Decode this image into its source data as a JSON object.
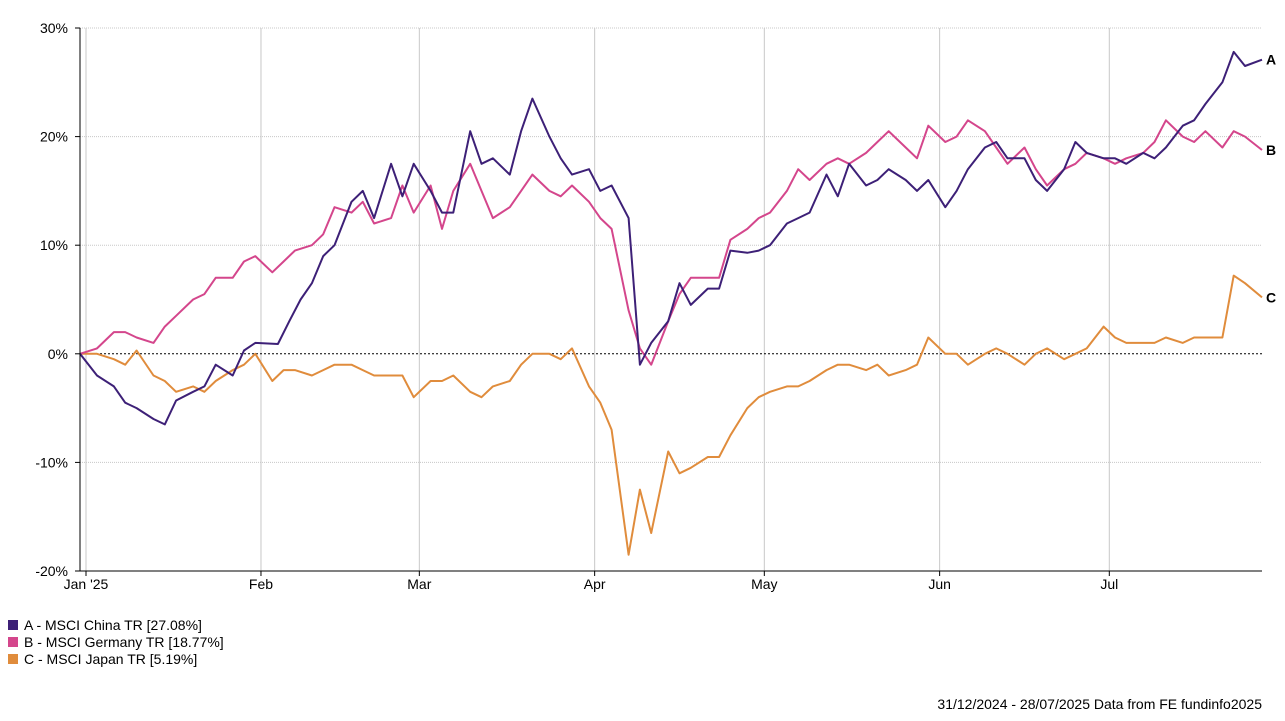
{
  "chart_data": {
    "type": "line",
    "y_unit": "%",
    "ylim": [
      -20,
      30
    ],
    "y_ticks": [
      "30%",
      "20%",
      "10%",
      "0%",
      "-10%",
      "-20%"
    ],
    "y_tick_values": [
      30,
      20,
      10,
      0,
      -10,
      -20
    ],
    "x_ticks": [
      {
        "label": "Jan '25",
        "date": "2025-01-01"
      },
      {
        "label": "Feb",
        "date": "2025-02-01"
      },
      {
        "label": "Mar",
        "date": "2025-03-01"
      },
      {
        "label": "Apr",
        "date": "2025-04-01"
      },
      {
        "label": "May",
        "date": "2025-05-01"
      },
      {
        "label": "Jun",
        "date": "2025-06-01"
      },
      {
        "label": "Jul",
        "date": "2025-07-01"
      }
    ],
    "x_range": [
      "2024-12-31",
      "2025-07-28"
    ],
    "grid": true,
    "zero_line": "dotted",
    "series": [
      {
        "id": "A",
        "name": "MSCI China TR",
        "final": "27.08%",
        "color": "#3d2077",
        "points": [
          [
            "2024-12-31",
            0
          ],
          [
            "2025-01-03",
            -2
          ],
          [
            "2025-01-06",
            -3
          ],
          [
            "2025-01-08",
            -4.5
          ],
          [
            "2025-01-10",
            -5
          ],
          [
            "2025-01-13",
            -6
          ],
          [
            "2025-01-15",
            -6.5
          ],
          [
            "2025-01-17",
            -4.3
          ],
          [
            "2025-01-20",
            -3.5
          ],
          [
            "2025-01-22",
            -3
          ],
          [
            "2025-01-24",
            -1
          ],
          [
            "2025-01-27",
            -2
          ],
          [
            "2025-01-29",
            0.3
          ],
          [
            "2025-01-31",
            1
          ],
          [
            "2025-02-04",
            0.9
          ],
          [
            "2025-02-06",
            3
          ],
          [
            "2025-02-08",
            5
          ],
          [
            "2025-02-10",
            6.5
          ],
          [
            "2025-02-12",
            9
          ],
          [
            "2025-02-14",
            10
          ],
          [
            "2025-02-17",
            14
          ],
          [
            "2025-02-19",
            15
          ],
          [
            "2025-02-21",
            12.5
          ],
          [
            "2025-02-24",
            17.5
          ],
          [
            "2025-02-26",
            14.5
          ],
          [
            "2025-02-28",
            17.5
          ],
          [
            "2025-03-03",
            15
          ],
          [
            "2025-03-05",
            13
          ],
          [
            "2025-03-07",
            13
          ],
          [
            "2025-03-10",
            20.5
          ],
          [
            "2025-03-12",
            17.5
          ],
          [
            "2025-03-14",
            18
          ],
          [
            "2025-03-17",
            16.5
          ],
          [
            "2025-03-19",
            20.5
          ],
          [
            "2025-03-21",
            23.5
          ],
          [
            "2025-03-24",
            20
          ],
          [
            "2025-03-26",
            18
          ],
          [
            "2025-03-28",
            16.5
          ],
          [
            "2025-03-31",
            17
          ],
          [
            "2025-04-02",
            15
          ],
          [
            "2025-04-04",
            15.5
          ],
          [
            "2025-04-07",
            12.5
          ],
          [
            "2025-04-09",
            -1
          ],
          [
            "2025-04-11",
            1
          ],
          [
            "2025-04-14",
            3
          ],
          [
            "2025-04-16",
            6.5
          ],
          [
            "2025-04-18",
            4.5
          ],
          [
            "2025-04-21",
            6
          ],
          [
            "2025-04-23",
            6
          ],
          [
            "2025-04-25",
            9.5
          ],
          [
            "2025-04-28",
            9.3
          ],
          [
            "2025-04-30",
            9.5
          ],
          [
            "2025-05-02",
            10
          ],
          [
            "2025-05-05",
            12
          ],
          [
            "2025-05-07",
            12.5
          ],
          [
            "2025-05-09",
            13
          ],
          [
            "2025-05-12",
            16.5
          ],
          [
            "2025-05-14",
            14.5
          ],
          [
            "2025-05-16",
            17.5
          ],
          [
            "2025-05-19",
            15.5
          ],
          [
            "2025-05-21",
            16
          ],
          [
            "2025-05-23",
            17
          ],
          [
            "2025-05-26",
            16
          ],
          [
            "2025-05-28",
            15
          ],
          [
            "2025-05-30",
            16
          ],
          [
            "2025-06-02",
            13.5
          ],
          [
            "2025-06-04",
            15
          ],
          [
            "2025-06-06",
            17
          ],
          [
            "2025-06-09",
            19
          ],
          [
            "2025-06-11",
            19.5
          ],
          [
            "2025-06-13",
            18
          ],
          [
            "2025-06-16",
            18
          ],
          [
            "2025-06-18",
            16
          ],
          [
            "2025-06-20",
            15
          ],
          [
            "2025-06-23",
            17
          ],
          [
            "2025-06-25",
            19.5
          ],
          [
            "2025-06-27",
            18.5
          ],
          [
            "2025-06-30",
            18
          ],
          [
            "2025-07-02",
            18
          ],
          [
            "2025-07-04",
            17.5
          ],
          [
            "2025-07-07",
            18.5
          ],
          [
            "2025-07-09",
            18
          ],
          [
            "2025-07-11",
            19
          ],
          [
            "2025-07-14",
            21
          ],
          [
            "2025-07-16",
            21.5
          ],
          [
            "2025-07-18",
            23
          ],
          [
            "2025-07-21",
            25
          ],
          [
            "2025-07-23",
            27.8
          ],
          [
            "2025-07-25",
            26.5
          ],
          [
            "2025-07-28",
            27.08
          ]
        ]
      },
      {
        "id": "B",
        "name": "MSCI Germany TR",
        "final": "18.77%",
        "color": "#d4468c",
        "points": [
          [
            "2024-12-31",
            0
          ],
          [
            "2025-01-03",
            0.5
          ],
          [
            "2025-01-06",
            2
          ],
          [
            "2025-01-08",
            2
          ],
          [
            "2025-01-10",
            1.5
          ],
          [
            "2025-01-13",
            1
          ],
          [
            "2025-01-15",
            2.5
          ],
          [
            "2025-01-17",
            3.5
          ],
          [
            "2025-01-20",
            5
          ],
          [
            "2025-01-22",
            5.5
          ],
          [
            "2025-01-24",
            7
          ],
          [
            "2025-01-27",
            7
          ],
          [
            "2025-01-29",
            8.5
          ],
          [
            "2025-01-31",
            9
          ],
          [
            "2025-02-03",
            7.5
          ],
          [
            "2025-02-05",
            8.5
          ],
          [
            "2025-02-07",
            9.5
          ],
          [
            "2025-02-10",
            10
          ],
          [
            "2025-02-12",
            11
          ],
          [
            "2025-02-14",
            13.5
          ],
          [
            "2025-02-17",
            13
          ],
          [
            "2025-02-19",
            14
          ],
          [
            "2025-02-21",
            12
          ],
          [
            "2025-02-24",
            12.5
          ],
          [
            "2025-02-26",
            15.5
          ],
          [
            "2025-02-28",
            13
          ],
          [
            "2025-03-03",
            15.5
          ],
          [
            "2025-03-05",
            11.5
          ],
          [
            "2025-03-07",
            15
          ],
          [
            "2025-03-10",
            17.5
          ],
          [
            "2025-03-12",
            15
          ],
          [
            "2025-03-14",
            12.5
          ],
          [
            "2025-03-17",
            13.5
          ],
          [
            "2025-03-19",
            15
          ],
          [
            "2025-03-21",
            16.5
          ],
          [
            "2025-03-24",
            15
          ],
          [
            "2025-03-26",
            14.5
          ],
          [
            "2025-03-28",
            15.5
          ],
          [
            "2025-03-31",
            14
          ],
          [
            "2025-04-02",
            12.5
          ],
          [
            "2025-04-04",
            11.5
          ],
          [
            "2025-04-07",
            4
          ],
          [
            "2025-04-09",
            0.5
          ],
          [
            "2025-04-11",
            -1
          ],
          [
            "2025-04-14",
            3
          ],
          [
            "2025-04-16",
            5.5
          ],
          [
            "2025-04-18",
            7
          ],
          [
            "2025-04-21",
            7
          ],
          [
            "2025-04-23",
            7
          ],
          [
            "2025-04-25",
            10.5
          ],
          [
            "2025-04-28",
            11.5
          ],
          [
            "2025-04-30",
            12.5
          ],
          [
            "2025-05-02",
            13
          ],
          [
            "2025-05-05",
            15
          ],
          [
            "2025-05-07",
            17
          ],
          [
            "2025-05-09",
            16
          ],
          [
            "2025-05-12",
            17.5
          ],
          [
            "2025-05-14",
            18
          ],
          [
            "2025-05-16",
            17.5
          ],
          [
            "2025-05-19",
            18.5
          ],
          [
            "2025-05-21",
            19.5
          ],
          [
            "2025-05-23",
            20.5
          ],
          [
            "2025-05-26",
            19
          ],
          [
            "2025-05-28",
            18
          ],
          [
            "2025-05-30",
            21
          ],
          [
            "2025-06-02",
            19.5
          ],
          [
            "2025-06-04",
            20
          ],
          [
            "2025-06-06",
            21.5
          ],
          [
            "2025-06-09",
            20.5
          ],
          [
            "2025-06-11",
            19
          ],
          [
            "2025-06-13",
            17.5
          ],
          [
            "2025-06-16",
            19
          ],
          [
            "2025-06-18",
            17
          ],
          [
            "2025-06-20",
            15.5
          ],
          [
            "2025-06-23",
            17
          ],
          [
            "2025-06-25",
            17.5
          ],
          [
            "2025-06-27",
            18.5
          ],
          [
            "2025-06-30",
            18
          ],
          [
            "2025-07-02",
            17.5
          ],
          [
            "2025-07-04",
            18
          ],
          [
            "2025-07-07",
            18.5
          ],
          [
            "2025-07-09",
            19.5
          ],
          [
            "2025-07-11",
            21.5
          ],
          [
            "2025-07-14",
            20
          ],
          [
            "2025-07-16",
            19.5
          ],
          [
            "2025-07-18",
            20.5
          ],
          [
            "2025-07-21",
            19
          ],
          [
            "2025-07-23",
            20.5
          ],
          [
            "2025-07-25",
            20
          ],
          [
            "2025-07-28",
            18.77
          ]
        ]
      },
      {
        "id": "C",
        "name": "MSCI Japan TR",
        "final": "5.19%",
        "color": "#e08c3c",
        "points": [
          [
            "2024-12-31",
            0
          ],
          [
            "2025-01-03",
            0
          ],
          [
            "2025-01-06",
            -0.5
          ],
          [
            "2025-01-08",
            -1
          ],
          [
            "2025-01-10",
            0.3
          ],
          [
            "2025-01-13",
            -2
          ],
          [
            "2025-01-15",
            -2.5
          ],
          [
            "2025-01-17",
            -3.5
          ],
          [
            "2025-01-20",
            -3
          ],
          [
            "2025-01-22",
            -3.5
          ],
          [
            "2025-01-24",
            -2.5
          ],
          [
            "2025-01-27",
            -1.5
          ],
          [
            "2025-01-29",
            -1
          ],
          [
            "2025-01-31",
            0
          ],
          [
            "2025-02-03",
            -2.5
          ],
          [
            "2025-02-05",
            -1.5
          ],
          [
            "2025-02-07",
            -1.5
          ],
          [
            "2025-02-10",
            -2
          ],
          [
            "2025-02-12",
            -1.5
          ],
          [
            "2025-02-14",
            -1
          ],
          [
            "2025-02-17",
            -1
          ],
          [
            "2025-02-19",
            -1.5
          ],
          [
            "2025-02-21",
            -2
          ],
          [
            "2025-02-24",
            -2
          ],
          [
            "2025-02-26",
            -2
          ],
          [
            "2025-02-28",
            -4
          ],
          [
            "2025-03-03",
            -2.5
          ],
          [
            "2025-03-05",
            -2.5
          ],
          [
            "2025-03-07",
            -2
          ],
          [
            "2025-03-10",
            -3.5
          ],
          [
            "2025-03-12",
            -4
          ],
          [
            "2025-03-14",
            -3
          ],
          [
            "2025-03-17",
            -2.5
          ],
          [
            "2025-03-19",
            -1
          ],
          [
            "2025-03-21",
            0
          ],
          [
            "2025-03-24",
            0
          ],
          [
            "2025-03-26",
            -0.5
          ],
          [
            "2025-03-28",
            0.5
          ],
          [
            "2025-03-31",
            -3
          ],
          [
            "2025-04-02",
            -4.5
          ],
          [
            "2025-04-04",
            -7
          ],
          [
            "2025-04-07",
            -18.5
          ],
          [
            "2025-04-09",
            -12.5
          ],
          [
            "2025-04-11",
            -16.5
          ],
          [
            "2025-04-14",
            -9
          ],
          [
            "2025-04-16",
            -11
          ],
          [
            "2025-04-18",
            -10.5
          ],
          [
            "2025-04-21",
            -9.5
          ],
          [
            "2025-04-23",
            -9.5
          ],
          [
            "2025-04-25",
            -7.5
          ],
          [
            "2025-04-28",
            -5
          ],
          [
            "2025-04-30",
            -4
          ],
          [
            "2025-05-02",
            -3.5
          ],
          [
            "2025-05-05",
            -3
          ],
          [
            "2025-05-07",
            -3
          ],
          [
            "2025-05-09",
            -2.5
          ],
          [
            "2025-05-12",
            -1.5
          ],
          [
            "2025-05-14",
            -1
          ],
          [
            "2025-05-16",
            -1
          ],
          [
            "2025-05-19",
            -1.5
          ],
          [
            "2025-05-21",
            -1
          ],
          [
            "2025-05-23",
            -2
          ],
          [
            "2025-05-26",
            -1.5
          ],
          [
            "2025-05-28",
            -1
          ],
          [
            "2025-05-30",
            1.5
          ],
          [
            "2025-06-02",
            0
          ],
          [
            "2025-06-04",
            0
          ],
          [
            "2025-06-06",
            -1
          ],
          [
            "2025-06-09",
            0
          ],
          [
            "2025-06-11",
            0.5
          ],
          [
            "2025-06-13",
            0
          ],
          [
            "2025-06-16",
            -1
          ],
          [
            "2025-06-18",
            0
          ],
          [
            "2025-06-20",
            0.5
          ],
          [
            "2025-06-23",
            -0.5
          ],
          [
            "2025-06-25",
            0
          ],
          [
            "2025-06-27",
            0.5
          ],
          [
            "2025-06-30",
            2.5
          ],
          [
            "2025-07-02",
            1.5
          ],
          [
            "2025-07-04",
            1
          ],
          [
            "2025-07-07",
            1
          ],
          [
            "2025-07-09",
            1
          ],
          [
            "2025-07-11",
            1.5
          ],
          [
            "2025-07-14",
            1
          ],
          [
            "2025-07-16",
            1.5
          ],
          [
            "2025-07-18",
            1.5
          ],
          [
            "2025-07-21",
            1.5
          ],
          [
            "2025-07-23",
            7.2
          ],
          [
            "2025-07-25",
            6.5
          ],
          [
            "2025-07-28",
            5.19
          ]
        ]
      }
    ]
  },
  "legend": [
    {
      "text": "A - MSCI China TR [27.08%]",
      "color": "#3d2077"
    },
    {
      "text": "B - MSCI Germany TR [18.77%]",
      "color": "#d4468c"
    },
    {
      "text": "C - MSCI Japan TR [5.19%]",
      "color": "#e08c3c"
    }
  ],
  "footer": "31/12/2024 - 28/07/2025 Data from FE fundinfo2025"
}
